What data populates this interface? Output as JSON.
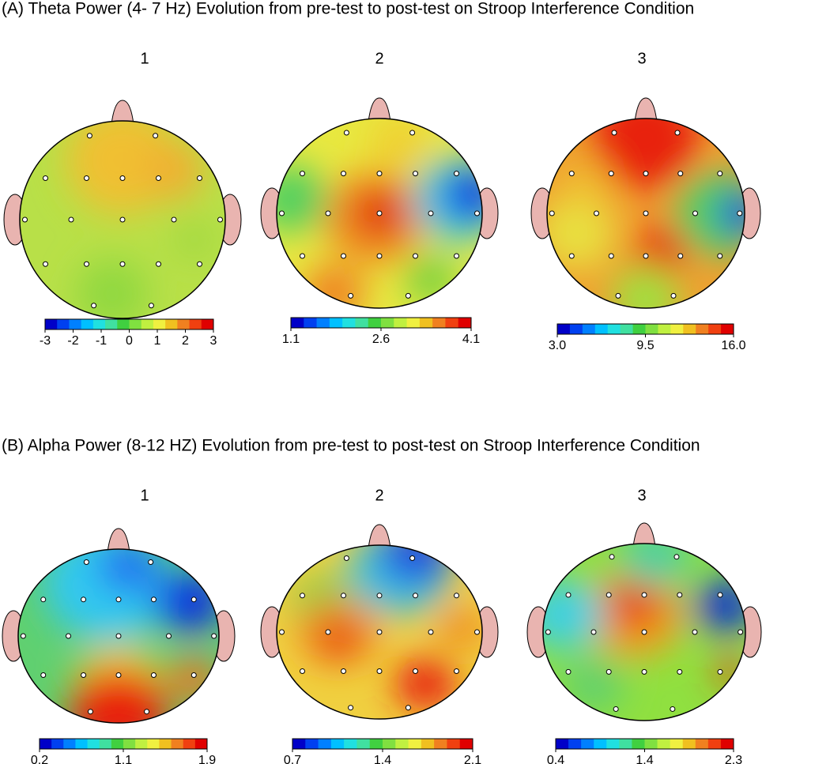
{
  "panels": [
    {
      "title": "(A) Theta Power (4- 7 Hz) Evolution from pre-test to post-test on Stroop Interference Condition",
      "maps": [
        {
          "label": "1",
          "scale": [
            "-3",
            "-2",
            "-1",
            "0",
            "1",
            "2",
            "3"
          ]
        },
        {
          "label": "2",
          "scale": [
            "1.1",
            "2.6",
            "4.1"
          ]
        },
        {
          "label": "3",
          "scale": [
            "3.0",
            "9.5",
            "16.0"
          ]
        }
      ]
    },
    {
      "title": "(B) Alpha Power (8-12 HZ) Evolution from pre-test to post-test on Stroop Interference Condition",
      "maps": [
        {
          "label": "1",
          "scale": [
            "0.2",
            "1.1",
            "1.9"
          ]
        },
        {
          "label": "2",
          "scale": [
            "0.7",
            "1.4",
            "2.1"
          ]
        },
        {
          "label": "3",
          "scale": [
            "0.4",
            "1.4",
            "2.3"
          ]
        }
      ]
    }
  ]
}
